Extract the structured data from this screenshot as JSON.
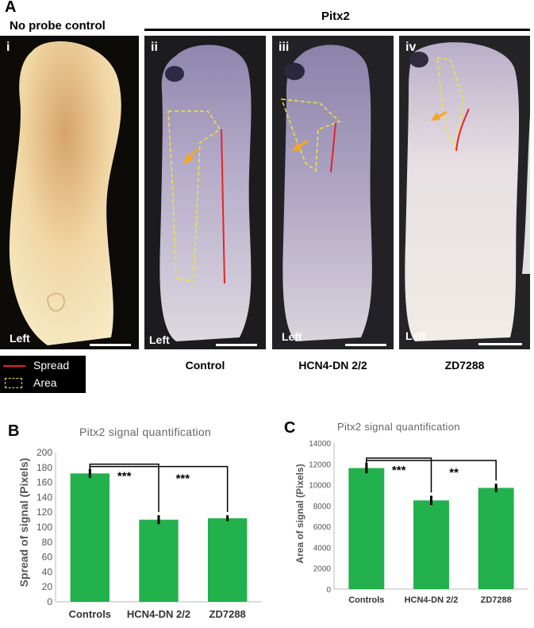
{
  "panel_a": {
    "letter": "A",
    "no_probe_title": "No probe control",
    "pitx2_title": "Pitx2",
    "panels": [
      {
        "roman": "i",
        "left": "Left"
      },
      {
        "roman": "ii",
        "left": "Left",
        "condition": "Control"
      },
      {
        "roman": "iii",
        "left": "Left",
        "condition": "HCN4-DN 2/2"
      },
      {
        "roman": "iv",
        "left": "Left",
        "condition": "ZD7288"
      }
    ],
    "legend": {
      "spread": "Spread",
      "area": "Area"
    },
    "colors": {
      "spread_line": "#e8222a",
      "area_outline": "#f5e23a",
      "arrow": "#f5a623"
    }
  },
  "panel_b": {
    "letter": "B",
    "title": "Pitx2 signal quantification",
    "ylabel": "Spread of signal (Pixels)",
    "yticks": [
      "0",
      "20",
      "40",
      "60",
      "80",
      "100",
      "120",
      "140",
      "160",
      "180",
      "200"
    ],
    "significance": [
      "***",
      "***"
    ]
  },
  "panel_c": {
    "letter": "C",
    "title": "Pitx2 signal quantification",
    "ylabel": "Area of signal (Pixels)",
    "yticks": [
      "0",
      "2000",
      "4000",
      "6000",
      "8000",
      "10000",
      "12000",
      "14000"
    ],
    "significance": [
      "***",
      "**"
    ]
  },
  "chart_data": [
    {
      "type": "bar",
      "title": "Pitx2 signal quantification",
      "ylabel": "Spread of signal (Pixels)",
      "xlabel": "",
      "categories": [
        "Controls",
        "HCN4-DN 2/2",
        "ZD7288"
      ],
      "values": [
        172,
        110,
        112
      ],
      "errors": [
        6,
        6,
        4
      ],
      "ylim": [
        0,
        200
      ],
      "color": "#22b14c"
    },
    {
      "type": "bar",
      "title": "Pitx2 signal quantification",
      "ylabel": "Area of signal (Pixels)",
      "xlabel": "",
      "categories": [
        "Controls",
        "HCN4-DN 2/2",
        "ZD7288"
      ],
      "values": [
        11600,
        8500,
        9700
      ],
      "errors": [
        500,
        450,
        400
      ],
      "ylim": [
        0,
        14000
      ],
      "color": "#22b14c"
    }
  ]
}
